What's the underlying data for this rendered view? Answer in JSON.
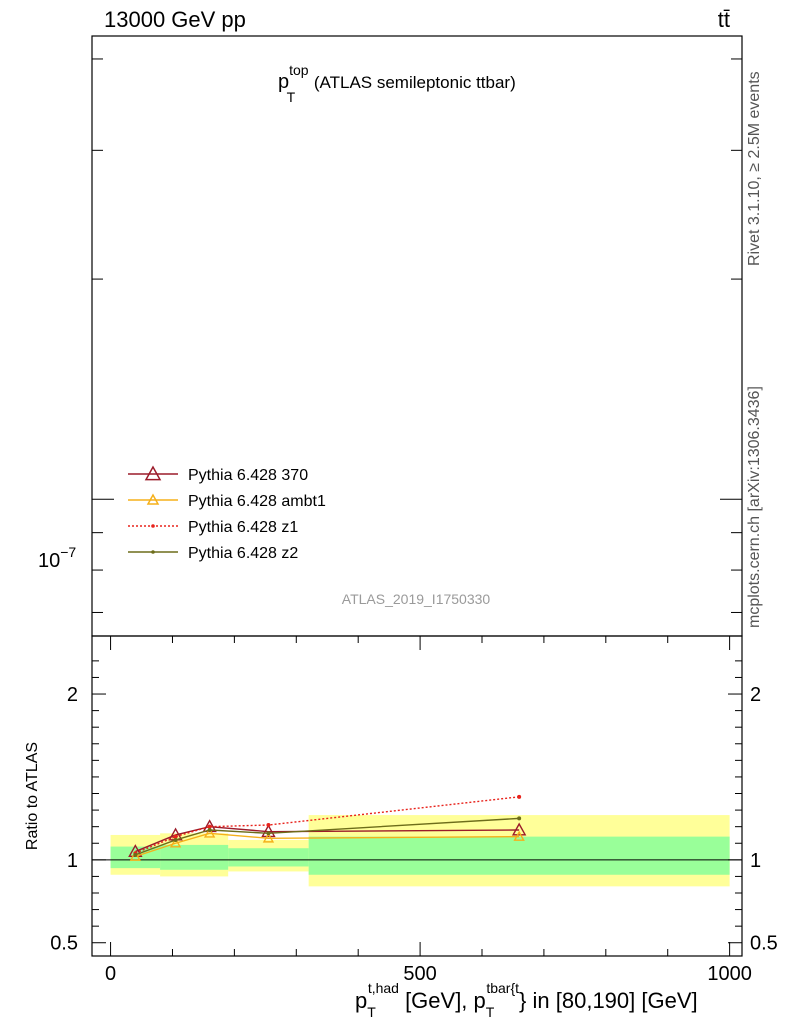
{
  "header": {
    "left_title": "13000 GeV pp",
    "right_title": "tt̄"
  },
  "side_labels": {
    "rivet": "Rivet 3.1.10, ≥ 2.5M events",
    "mcplots": "mcplots.cern.ch [arXiv:1306.3436]"
  },
  "chart_data": [
    {
      "type": "line",
      "panel": "main",
      "title_main": "p",
      "title_sup": "top",
      "title_sub": "T",
      "title_rest": " (ATLAS semileptonic ttbar)",
      "analysis_label": "ATLAS_2019_I1750330",
      "yscale": "log",
      "y_tick_labels": [
        {
          "mantissa": "10",
          "exponent": "−7",
          "value": 1e-07
        }
      ],
      "ylim": [
        6.5e-08,
        4.3e-07
      ],
      "legend_position": "middle-left",
      "legend": [
        {
          "name": "Pythia 6.428 370",
          "color": "#9b1b2a",
          "marker": "open-triangle-large",
          "dash": "solid"
        },
        {
          "name": "Pythia 6.428 ambt1",
          "color": "#f5b01a",
          "marker": "open-triangle-small",
          "dash": "solid"
        },
        {
          "name": "Pythia 6.428 z1",
          "color": "#e8231c",
          "marker": "dot",
          "dash": "dotted"
        },
        {
          "name": "Pythia 6.428 z2",
          "color": "#6d6d1a",
          "marker": "dot",
          "dash": "solid"
        }
      ]
    },
    {
      "type": "line",
      "panel": "ratio",
      "ylabel": "Ratio to ATLAS",
      "xlabel_parts": [
        "p",
        "T",
        "t,had",
        " [GeV], p",
        "T",
        "tbar{t",
        "} in [80,190] [GeV]"
      ],
      "xlim": [
        -30,
        1020
      ],
      "ylim": [
        0.42,
        2.35
      ],
      "x_ticks": [
        0,
        500,
        1000
      ],
      "y_ticks": [
        0.5,
        1,
        2
      ],
      "bands": [
        {
          "x0": 0,
          "x1": 80,
          "green": [
            0.95,
            1.08
          ],
          "yellow": [
            0.91,
            1.15
          ]
        },
        {
          "x0": 80,
          "x1": 190,
          "green": [
            0.94,
            1.09
          ],
          "yellow": [
            0.9,
            1.16
          ]
        },
        {
          "x0": 190,
          "x1": 320,
          "green": [
            0.96,
            1.07
          ],
          "yellow": [
            0.93,
            1.12
          ]
        },
        {
          "x0": 320,
          "x1": 1000,
          "green": [
            0.91,
            1.14
          ],
          "yellow": [
            0.84,
            1.27
          ]
        }
      ],
      "series": [
        {
          "name": "Pythia 6.428 370",
          "x": [
            40,
            105,
            160,
            255,
            660
          ],
          "y": [
            1.05,
            1.15,
            1.2,
            1.17,
            1.18
          ]
        },
        {
          "name": "Pythia 6.428 ambt1",
          "x": [
            40,
            105,
            160,
            255,
            660
          ],
          "y": [
            1.02,
            1.1,
            1.16,
            1.13,
            1.14
          ]
        },
        {
          "name": "Pythia 6.428 z1",
          "x": [
            40,
            105,
            160,
            255,
            660
          ],
          "y": [
            1.04,
            1.14,
            1.2,
            1.21,
            1.38
          ]
        },
        {
          "name": "Pythia 6.428 z2",
          "x": [
            40,
            105,
            160,
            255,
            660
          ],
          "y": [
            1.03,
            1.12,
            1.18,
            1.16,
            1.25
          ]
        }
      ]
    }
  ]
}
